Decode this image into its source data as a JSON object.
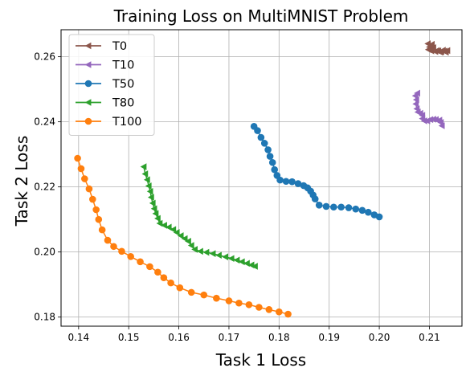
{
  "chart_data": {
    "type": "line",
    "title": "Training Loss on MultiMNIST Problem",
    "xlabel": "Task 1 Loss",
    "ylabel": "Task 2 Loss",
    "xlim": [
      0.1365,
      0.2165
    ],
    "ylim": [
      0.1772,
      0.2683
    ],
    "xticks": [
      0.14,
      0.15,
      0.16,
      0.17,
      0.18,
      0.19,
      0.2,
      0.21
    ],
    "xtick_labels": [
      "0.14",
      "0.15",
      "0.16",
      "0.17",
      "0.18",
      "0.19",
      "0.20",
      "0.21"
    ],
    "yticks": [
      0.18,
      0.2,
      0.22,
      0.24,
      0.26
    ],
    "ytick_labels": [
      "0.18",
      "0.20",
      "0.22",
      "0.24",
      "0.26"
    ],
    "grid": true,
    "legend_position": "top-left",
    "series": [
      {
        "name": "T0",
        "color": "#8c564b",
        "marker": "triangle-left",
        "points": [
          [
            0.2097,
            0.264
          ],
          [
            0.2105,
            0.2638
          ],
          [
            0.21,
            0.263
          ],
          [
            0.2108,
            0.2628
          ],
          [
            0.2098,
            0.2622
          ],
          [
            0.2104,
            0.2618
          ],
          [
            0.2112,
            0.2616
          ],
          [
            0.2118,
            0.2618
          ],
          [
            0.2124,
            0.2616
          ],
          [
            0.213,
            0.2617
          ],
          [
            0.2136,
            0.2619
          ],
          [
            0.2133,
            0.2614
          ],
          [
            0.2127,
            0.262
          ],
          [
            0.2122,
            0.2614
          ],
          [
            0.2115,
            0.2619
          ]
        ]
      },
      {
        "name": "T10",
        "color": "#9467bd",
        "marker": "triangle-left",
        "points": [
          [
            0.2076,
            0.2488
          ],
          [
            0.2072,
            0.248
          ],
          [
            0.2074,
            0.2468
          ],
          [
            0.2073,
            0.2455
          ],
          [
            0.2075,
            0.244
          ],
          [
            0.2077,
            0.243
          ],
          [
            0.2082,
            0.2426
          ],
          [
            0.2086,
            0.242
          ],
          [
            0.2086,
            0.241
          ],
          [
            0.209,
            0.2403
          ],
          [
            0.2096,
            0.2403
          ],
          [
            0.2102,
            0.2407
          ],
          [
            0.2108,
            0.2408
          ],
          [
            0.2113,
            0.2407
          ],
          [
            0.212,
            0.2405
          ],
          [
            0.2123,
            0.2398
          ],
          [
            0.2125,
            0.2388
          ]
        ]
      },
      {
        "name": "T50",
        "color": "#1f77b4",
        "marker": "circle",
        "points": [
          [
            0.175,
            0.2386
          ],
          [
            0.1757,
            0.2373
          ],
          [
            0.1764,
            0.2352
          ],
          [
            0.1771,
            0.2334
          ],
          [
            0.1778,
            0.2314
          ],
          [
            0.1782,
            0.2294
          ],
          [
            0.1787,
            0.2275
          ],
          [
            0.1791,
            0.2253
          ],
          [
            0.1796,
            0.2235
          ],
          [
            0.1802,
            0.2221
          ],
          [
            0.1814,
            0.2217
          ],
          [
            0.1826,
            0.2216
          ],
          [
            0.1838,
            0.221
          ],
          [
            0.1849,
            0.2204
          ],
          [
            0.1857,
            0.2197
          ],
          [
            0.1863,
            0.2187
          ],
          [
            0.1868,
            0.2175
          ],
          [
            0.1872,
            0.2163
          ],
          [
            0.188,
            0.2144
          ],
          [
            0.1894,
            0.214
          ],
          [
            0.1909,
            0.2138
          ],
          [
            0.1924,
            0.2138
          ],
          [
            0.1939,
            0.2136
          ],
          [
            0.1953,
            0.2132
          ],
          [
            0.1966,
            0.2128
          ],
          [
            0.1978,
            0.2122
          ],
          [
            0.199,
            0.2114
          ],
          [
            0.2,
            0.2108
          ]
        ]
      },
      {
        "name": "T80",
        "color": "#2ca02c",
        "marker": "triangle-left",
        "points": [
          [
            0.153,
            0.2262
          ],
          [
            0.1533,
            0.224
          ],
          [
            0.1537,
            0.2222
          ],
          [
            0.154,
            0.2203
          ],
          [
            0.1543,
            0.2186
          ],
          [
            0.1545,
            0.2168
          ],
          [
            0.1548,
            0.215
          ],
          [
            0.1551,
            0.2133
          ],
          [
            0.1554,
            0.2118
          ],
          [
            0.1558,
            0.2103
          ],
          [
            0.1562,
            0.2088
          ],
          [
            0.1571,
            0.2082
          ],
          [
            0.158,
            0.2076
          ],
          [
            0.1589,
            0.2069
          ],
          [
            0.1596,
            0.206
          ],
          [
            0.1604,
            0.205
          ],
          [
            0.1612,
            0.2041
          ],
          [
            0.1619,
            0.2033
          ],
          [
            0.1625,
            0.202
          ],
          [
            0.1632,
            0.2008
          ],
          [
            0.1643,
            0.2002
          ],
          [
            0.1655,
            0.1999
          ],
          [
            0.1668,
            0.1995
          ],
          [
            0.168,
            0.199
          ],
          [
            0.1693,
            0.1985
          ],
          [
            0.1705,
            0.198
          ],
          [
            0.1716,
            0.1975
          ],
          [
            0.1726,
            0.197
          ],
          [
            0.1736,
            0.1965
          ],
          [
            0.1745,
            0.196
          ],
          [
            0.1752,
            0.1956
          ]
        ]
      },
      {
        "name": "T100",
        "color": "#ff7f0e",
        "marker": "circle",
        "points": [
          [
            0.1398,
            0.2288
          ],
          [
            0.1405,
            0.2256
          ],
          [
            0.1412,
            0.2225
          ],
          [
            0.1421,
            0.2194
          ],
          [
            0.1428,
            0.2162
          ],
          [
            0.1435,
            0.213
          ],
          [
            0.144,
            0.21
          ],
          [
            0.1447,
            0.2068
          ],
          [
            0.1458,
            0.2036
          ],
          [
            0.147,
            0.2017
          ],
          [
            0.1486,
            0.2002
          ],
          [
            0.1504,
            0.1986
          ],
          [
            0.1523,
            0.197
          ],
          [
            0.1542,
            0.1955
          ],
          [
            0.1558,
            0.1938
          ],
          [
            0.157,
            0.1921
          ],
          [
            0.1584,
            0.1905
          ],
          [
            0.1602,
            0.189
          ],
          [
            0.1625,
            0.1876
          ],
          [
            0.165,
            0.1868
          ],
          [
            0.1675,
            0.1858
          ],
          [
            0.17,
            0.185
          ],
          [
            0.172,
            0.1843
          ],
          [
            0.174,
            0.1838
          ],
          [
            0.176,
            0.183
          ],
          [
            0.178,
            0.1823
          ],
          [
            0.18,
            0.1816
          ],
          [
            0.1818,
            0.1809
          ]
        ]
      }
    ]
  }
}
